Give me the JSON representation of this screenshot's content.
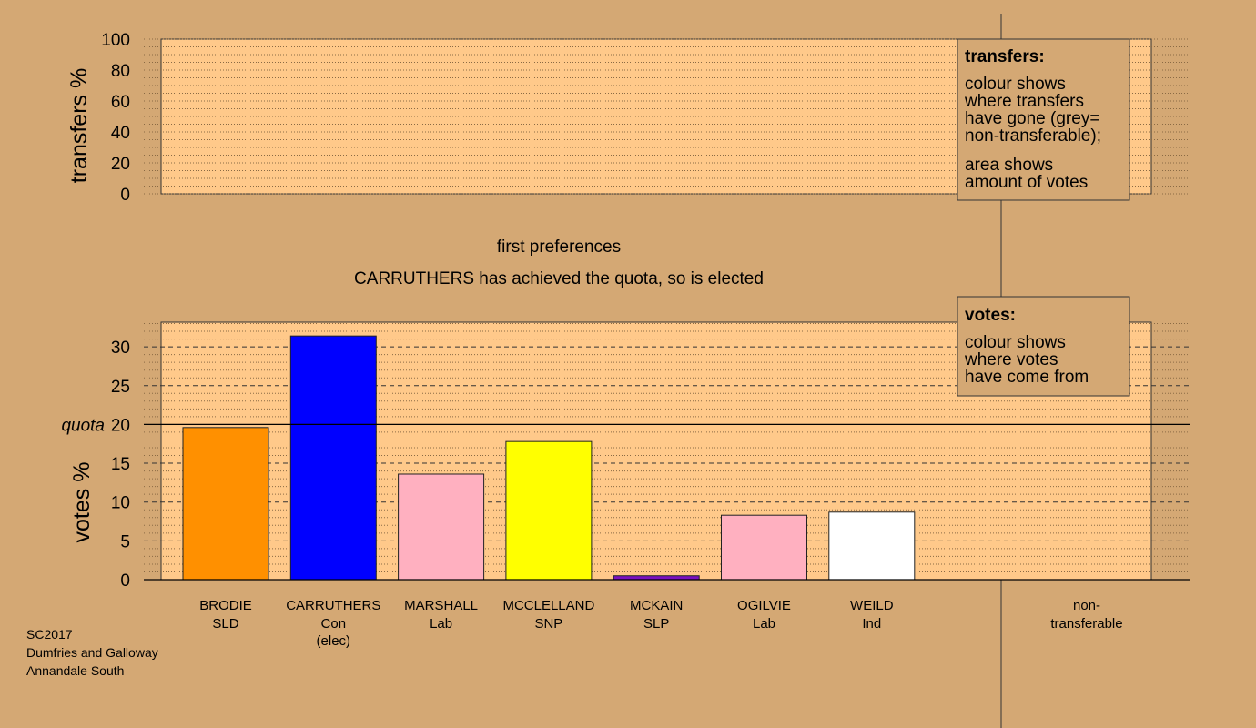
{
  "chart_data": {
    "type": "bar",
    "top_panel": {
      "ylabel": "transfers %",
      "yticks": [
        0,
        20,
        40,
        60,
        80,
        100
      ],
      "ylim": [
        0,
        100
      ]
    },
    "stage_label": "first preferences",
    "status_text": "CARRUTHERS has achieved the quota, so is elected",
    "main_panel": {
      "ylabel": "votes %",
      "yticks": [
        0,
        5,
        10,
        15,
        20,
        25,
        30
      ],
      "ylim": [
        0,
        33
      ],
      "quota": 20,
      "quota_label": "quota",
      "candidates": [
        {
          "name": "BRODIE",
          "party": "SLD",
          "note": "",
          "value": 19.6,
          "color": "#ff9000"
        },
        {
          "name": "CARRUTHERS",
          "party": "Con",
          "note": "(elec)",
          "value": 31.4,
          "color": "#0000ff"
        },
        {
          "name": "MARSHALL",
          "party": "Lab",
          "note": "",
          "value": 13.6,
          "color": "#ffb0c0"
        },
        {
          "name": "MCCLELLAND",
          "party": "SNP",
          "note": "",
          "value": 17.8,
          "color": "#ffff00"
        },
        {
          "name": "MCKAIN",
          "party": "SLP",
          "note": "",
          "value": 0.5,
          "color": "#7a10c0"
        },
        {
          "name": "OGILVIE",
          "party": "Lab",
          "note": "",
          "value": 8.3,
          "color": "#ffb0c0"
        },
        {
          "name": "WEILD",
          "party": "Ind",
          "note": "",
          "value": 8.7,
          "color": "#ffffff"
        }
      ],
      "nontransferable_label_1": "non-",
      "nontransferable_label_2": "transferable"
    }
  },
  "legend_transfers": {
    "title": "transfers:",
    "lines_1": [
      "colour shows",
      "where transfers",
      "have gone (grey=",
      "non-transferable);"
    ],
    "lines_2": [
      "area shows",
      "amount of votes"
    ]
  },
  "legend_votes": {
    "title": "votes:",
    "lines": [
      "colour shows",
      "where votes",
      "have come from"
    ]
  },
  "footer": {
    "line1": "SC2017",
    "line2": "Dumfries and Galloway",
    "line3": "Annandale South"
  },
  "colors": {
    "background": "#d4a874",
    "panel": "#ffc98a"
  }
}
